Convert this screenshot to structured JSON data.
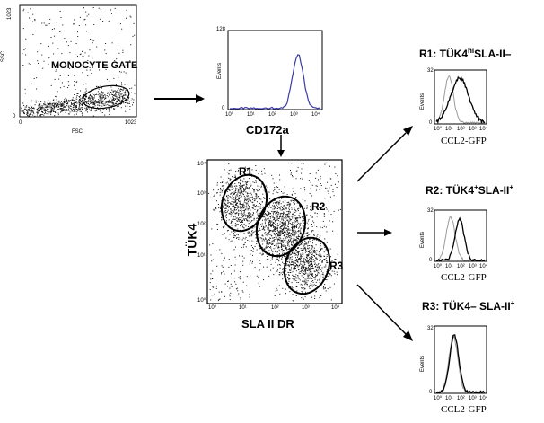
{
  "panel_scatter1": {
    "ssc_label": "SSC",
    "fsc_label": "FSC",
    "y_max": "1023",
    "y_min": "0",
    "x_min": "0",
    "x_max": "1023",
    "gate_label": "MONOCYTE GATE"
  },
  "panel_hist": {
    "y_max": "128",
    "y_min": "0",
    "events_label": "Events",
    "x_ticks": [
      "10⁰",
      "10¹",
      "10²",
      "10³",
      "10⁴"
    ],
    "xlabel": "CD172a"
  },
  "panel_scatter2": {
    "ylabel": "TÜK4",
    "xlabel": "SLA II DR",
    "region_labels": [
      "R1",
      "R2",
      "R3"
    ],
    "y_ticks": [
      "10⁴",
      "10³",
      "10²",
      "10¹",
      "10⁰"
    ],
    "x_ticks": [
      "10⁰",
      "10¹",
      "10²",
      "10³",
      "10⁴"
    ]
  },
  "right_panels": [
    {
      "title_parts": [
        "R1: TÜK4",
        "hi",
        "SLA-II–",
        ""
      ],
      "y_max": "32",
      "y_min": "0",
      "events_label": "Events",
      "x_ticks": [
        "10⁰",
        "10¹",
        "10²",
        "10³",
        "10⁴"
      ],
      "xlabel": "CCL2-GFP"
    },
    {
      "title_parts": [
        "R2: TÜK4",
        "+",
        "SLA-II",
        "+"
      ],
      "y_max": "32",
      "y_min": "0",
      "events_label": "Events",
      "x_ticks": [
        "10⁰",
        "10¹",
        "10²",
        "10³",
        "10⁴"
      ],
      "xlabel": "CCL2-GFP"
    },
    {
      "title_parts": [
        "R3: TÜK4– SLA-II",
        "+",
        "",
        ""
      ],
      "y_max": "32",
      "y_min": "0",
      "events_label": "Events",
      "x_ticks": [
        "10⁰",
        "10¹",
        "10²",
        "10³",
        "10⁴"
      ],
      "xlabel": "CCL2-GFP"
    }
  ],
  "colors": {
    "ink": "#000000",
    "hist_blue": "#3a3aa8",
    "hist_gray": "#9a9a9a"
  }
}
